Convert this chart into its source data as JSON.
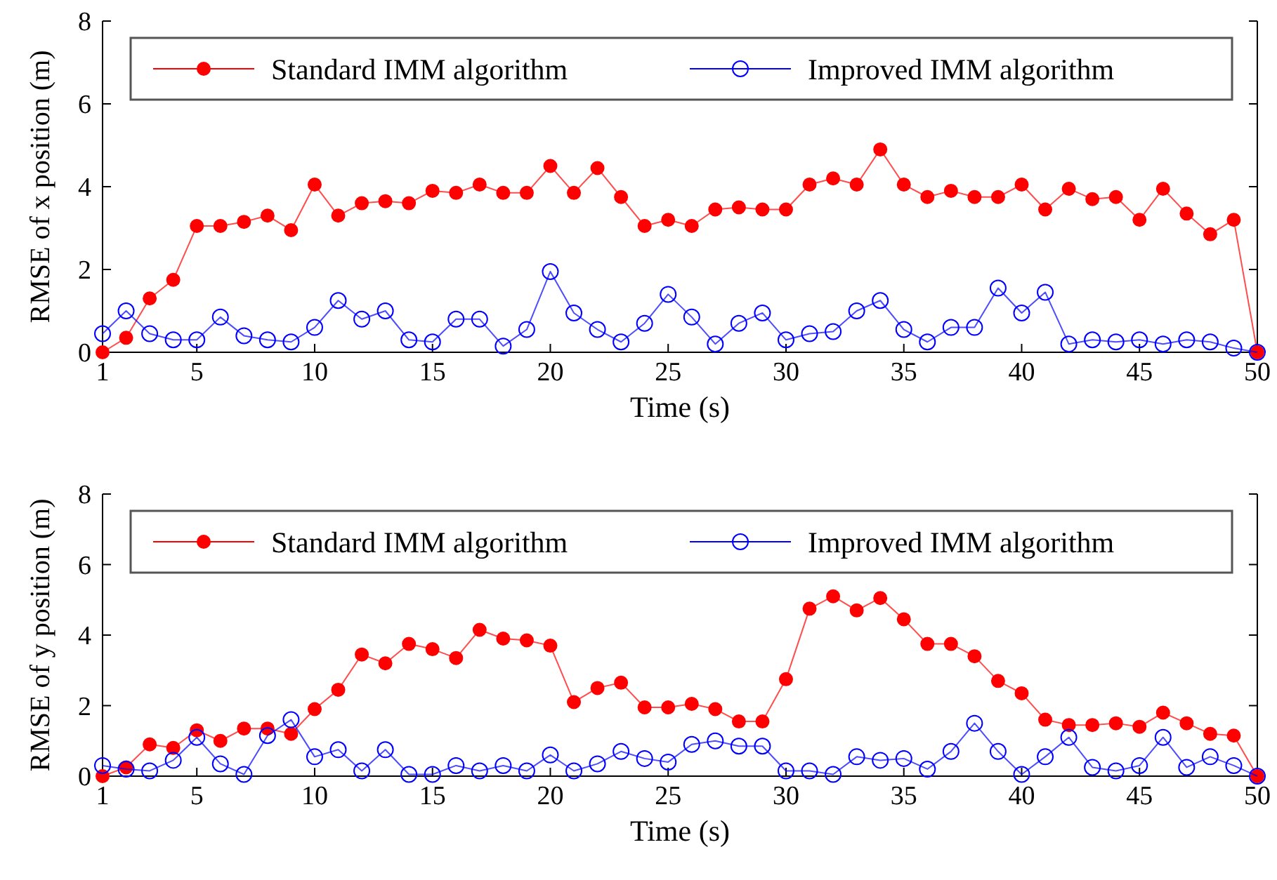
{
  "chart_data": [
    {
      "type": "line",
      "xlabel": "Time  (s)",
      "ylabel": "RMSE of x position (m)",
      "x": [
        1,
        2,
        3,
        4,
        5,
        6,
        7,
        8,
        9,
        10,
        11,
        12,
        13,
        14,
        15,
        16,
        17,
        18,
        19,
        20,
        21,
        22,
        23,
        24,
        25,
        26,
        27,
        28,
        29,
        30,
        31,
        32,
        33,
        34,
        35,
        36,
        37,
        38,
        39,
        40,
        41,
        42,
        43,
        44,
        45,
        46,
        47,
        48,
        49,
        50
      ],
      "xlim": [
        1,
        50
      ],
      "xticks": [
        1,
        5,
        10,
        15,
        20,
        25,
        30,
        35,
        40,
        45,
        50
      ],
      "ylim": [
        0,
        8
      ],
      "yticks": [
        0,
        2,
        4,
        6,
        8
      ],
      "legend": "top",
      "grid": false,
      "marker": "circle",
      "line_style": "solid",
      "series": [
        {
          "name": "Standard IMM algorithm",
          "color": "#ff0000",
          "values": [
            0,
            0.35,
            1.3,
            1.75,
            3.05,
            3.05,
            3.15,
            3.3,
            2.95,
            4.05,
            3.3,
            3.6,
            3.65,
            3.6,
            3.9,
            3.85,
            4.05,
            3.85,
            3.85,
            4.5,
            3.85,
            4.45,
            3.75,
            3.05,
            3.2,
            3.05,
            3.45,
            3.5,
            3.45,
            3.45,
            4.05,
            4.2,
            4.05,
            4.9,
            4.05,
            3.75,
            3.9,
            3.75,
            3.75,
            4.05,
            3.45,
            3.95,
            3.7,
            3.75,
            3.2,
            3.95,
            3.35,
            2.85,
            3.2,
            0
          ]
        },
        {
          "name": "Improved IMM algorithm",
          "color": "#0000ff",
          "values": [
            0.45,
            1.0,
            0.45,
            0.3,
            0.3,
            0.85,
            0.4,
            0.3,
            0.25,
            0.6,
            1.25,
            0.8,
            1.0,
            0.3,
            0.25,
            0.8,
            0.8,
            0.15,
            0.55,
            1.95,
            0.95,
            0.55,
            0.25,
            0.7,
            1.4,
            0.85,
            0.2,
            0.7,
            0.95,
            0.3,
            0.45,
            0.5,
            1.0,
            1.25,
            0.55,
            0.25,
            0.6,
            0.6,
            1.55,
            0.95,
            1.45,
            0.2,
            0.3,
            0.25,
            0.3,
            0.2,
            0.3,
            0.25,
            0.1,
            0
          ]
        }
      ]
    },
    {
      "type": "line",
      "xlabel": "Time  (s)",
      "ylabel": "RMSE of y position (m)",
      "x": [
        1,
        2,
        3,
        4,
        5,
        6,
        7,
        8,
        9,
        10,
        11,
        12,
        13,
        14,
        15,
        16,
        17,
        18,
        19,
        20,
        21,
        22,
        23,
        24,
        25,
        26,
        27,
        28,
        29,
        30,
        31,
        32,
        33,
        34,
        35,
        36,
        37,
        38,
        39,
        40,
        41,
        42,
        43,
        44,
        45,
        46,
        47,
        48,
        49,
        50
      ],
      "xlim": [
        1,
        50
      ],
      "xticks": [
        1,
        5,
        10,
        15,
        20,
        25,
        30,
        35,
        40,
        45,
        50
      ],
      "ylim": [
        0,
        8
      ],
      "yticks": [
        0,
        2,
        4,
        6,
        8
      ],
      "legend": "top",
      "grid": false,
      "marker": "circle",
      "line_style": "solid",
      "series": [
        {
          "name": "Standard IMM algorithm",
          "color": "#ff0000",
          "values": [
            0,
            0.25,
            0.9,
            0.8,
            1.3,
            1.0,
            1.35,
            1.35,
            1.2,
            1.9,
            2.45,
            3.45,
            3.2,
            3.75,
            3.6,
            3.35,
            4.15,
            3.9,
            3.85,
            3.7,
            2.1,
            2.5,
            2.65,
            1.95,
            1.95,
            2.05,
            1.9,
            1.55,
            1.55,
            2.75,
            4.75,
            5.1,
            4.7,
            5.05,
            4.45,
            3.75,
            3.75,
            3.4,
            2.7,
            2.35,
            1.6,
            1.45,
            1.45,
            1.5,
            1.4,
            1.8,
            1.5,
            1.2,
            1.15,
            0
          ]
        },
        {
          "name": "Improved IMM algorithm",
          "color": "#0000ff",
          "values": [
            0.3,
            0.2,
            0.15,
            0.45,
            1.1,
            0.35,
            0.05,
            1.15,
            1.6,
            0.55,
            0.75,
            0.15,
            0.75,
            0.05,
            0.05,
            0.3,
            0.15,
            0.3,
            0.15,
            0.6,
            0.15,
            0.35,
            0.7,
            0.5,
            0.4,
            0.9,
            1.0,
            0.85,
            0.85,
            0.15,
            0.15,
            0.05,
            0.55,
            0.45,
            0.5,
            0.2,
            0.7,
            1.5,
            0.7,
            0.05,
            0.55,
            1.1,
            0.25,
            0.15,
            0.3,
            1.1,
            0.25,
            0.55,
            0.3,
            0
          ]
        }
      ]
    }
  ]
}
